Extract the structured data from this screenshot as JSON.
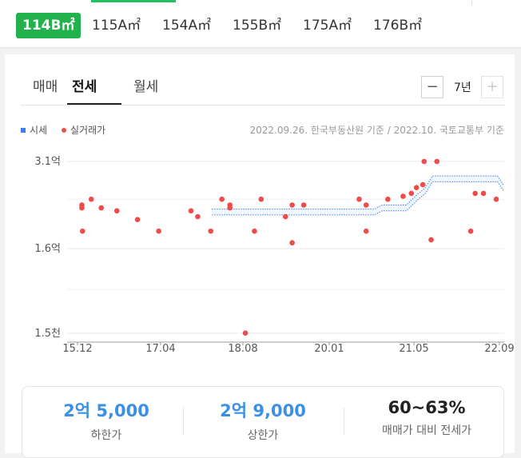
{
  "area_tabs": [
    {
      "label": "114B㎡",
      "active": true
    },
    {
      "label": "115A㎡"
    },
    {
      "label": "154A㎡"
    },
    {
      "label": "155B㎡"
    },
    {
      "label": "175A㎡"
    },
    {
      "label": "176B㎡"
    }
  ],
  "deal_tabs": [
    {
      "label": "매매"
    },
    {
      "label": "전세",
      "active": true
    },
    {
      "label": "월세"
    }
  ],
  "period": {
    "minus_icon": "minus-icon",
    "label": "7년",
    "plus_icon": "plus-icon"
  },
  "legend": {
    "market_price": "시세",
    "actual_trade": "실거래가"
  },
  "source_note": "2022.09.26. 한국부동산원 기준 / 2022.10. 국토교통부 기준",
  "colors": {
    "active_tab": "#22b24c",
    "market_band": "#3a7ee8",
    "trade_dot": "#f04b4b",
    "summary_value": "#3b8fe6"
  },
  "chart_data": {
    "type": "scatter",
    "y_tick_labels": [
      "3.1억",
      "1.6억",
      "1.5천"
    ],
    "x_tick_labels": [
      "15.12",
      "17.04",
      "18.08",
      "20.01",
      "21.05",
      "22.09"
    ],
    "ylim": [
      0,
      31000
    ],
    "y_unit": "만원",
    "grid": true,
    "legend": "top-left",
    "series": [
      {
        "name": "실거래가",
        "kind": "points",
        "points": [
          [
            2015.99,
            23000
          ],
          [
            2015.99,
            23500
          ],
          [
            2016.0,
            19000
          ],
          [
            2016.14,
            24500
          ],
          [
            2016.3,
            23000
          ],
          [
            2016.55,
            22500
          ],
          [
            2016.88,
            21000
          ],
          [
            2017.22,
            19000
          ],
          [
            2017.74,
            22500
          ],
          [
            2017.85,
            21500
          ],
          [
            2018.06,
            19000
          ],
          [
            2018.24,
            24500
          ],
          [
            2018.37,
            23500
          ],
          [
            2018.37,
            23000
          ],
          [
            2018.62,
            1000
          ],
          [
            2018.77,
            19000
          ],
          [
            2018.88,
            24500
          ],
          [
            2019.28,
            21500
          ],
          [
            2019.39,
            23500
          ],
          [
            2019.39,
            17000
          ],
          [
            2019.58,
            23500
          ],
          [
            2020.47,
            24500
          ],
          [
            2020.58,
            23500
          ],
          [
            2020.58,
            19000
          ],
          [
            2020.92,
            24500
          ],
          [
            2021.16,
            25000
          ],
          [
            2021.29,
            25500
          ],
          [
            2021.37,
            26500
          ],
          [
            2021.47,
            27000
          ],
          [
            2021.49,
            31000
          ],
          [
            2021.6,
            17500
          ],
          [
            2021.69,
            31000
          ],
          [
            2022.22,
            19000
          ],
          [
            2022.29,
            25500
          ],
          [
            2022.42,
            25500
          ],
          [
            2022.62,
            24500
          ]
        ]
      },
      {
        "name": "시세",
        "kind": "band",
        "points": [
          [
            2018.08,
            21800,
            22800
          ],
          [
            2020.71,
            21800,
            22800
          ],
          [
            2020.83,
            22500,
            23500
          ],
          [
            2021.21,
            22500,
            23500
          ],
          [
            2021.4,
            24500,
            25500
          ],
          [
            2021.51,
            25500,
            26500
          ],
          [
            2021.62,
            27500,
            28500
          ],
          [
            2022.64,
            27500,
            28500
          ],
          [
            2022.73,
            26000,
            27000
          ]
        ]
      }
    ]
  },
  "summary": [
    {
      "value": "2억 5,000",
      "label": "하한가"
    },
    {
      "value": "2억 9,000",
      "label": "상한가"
    },
    {
      "value": "60~63%",
      "label": "매매가 대비 전세가"
    }
  ]
}
